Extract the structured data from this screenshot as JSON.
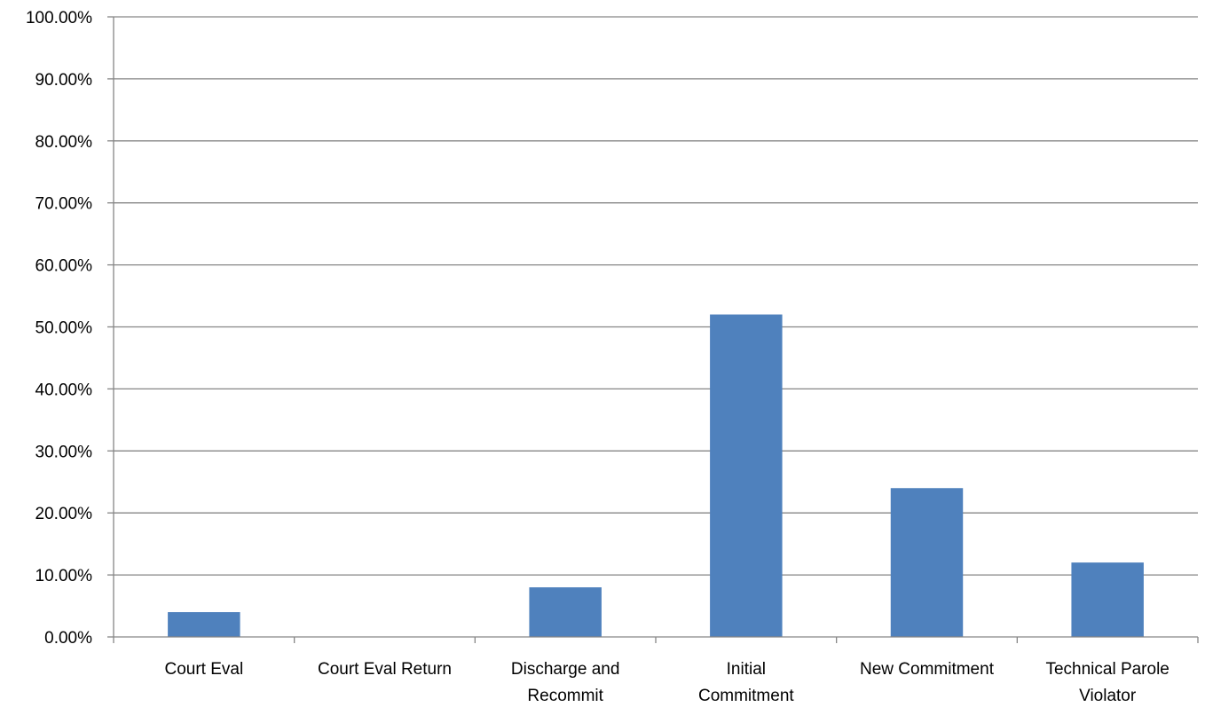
{
  "chart_data": {
    "type": "bar",
    "title": "",
    "xlabel": "",
    "ylabel": "",
    "categories": [
      [
        "Court Eval"
      ],
      [
        "Court Eval Return"
      ],
      [
        "Discharge and",
        "Recommit"
      ],
      [
        "Initial",
        "Commitment"
      ],
      [
        "New Commitment"
      ],
      [
        "Technical Parole",
        "Violator"
      ]
    ],
    "values": [
      4.0,
      0.0,
      8.0,
      52.0,
      24.0,
      12.0
    ],
    "ylim": [
      0,
      100
    ],
    "y_ticks": [
      0,
      10,
      20,
      30,
      40,
      50,
      60,
      70,
      80,
      90,
      100
    ],
    "y_tick_format": "percent_2dp",
    "grid": true,
    "legend": "none",
    "colors": {
      "bar": "#4F81BD",
      "grid": "#868686",
      "axis": "#868686"
    }
  }
}
